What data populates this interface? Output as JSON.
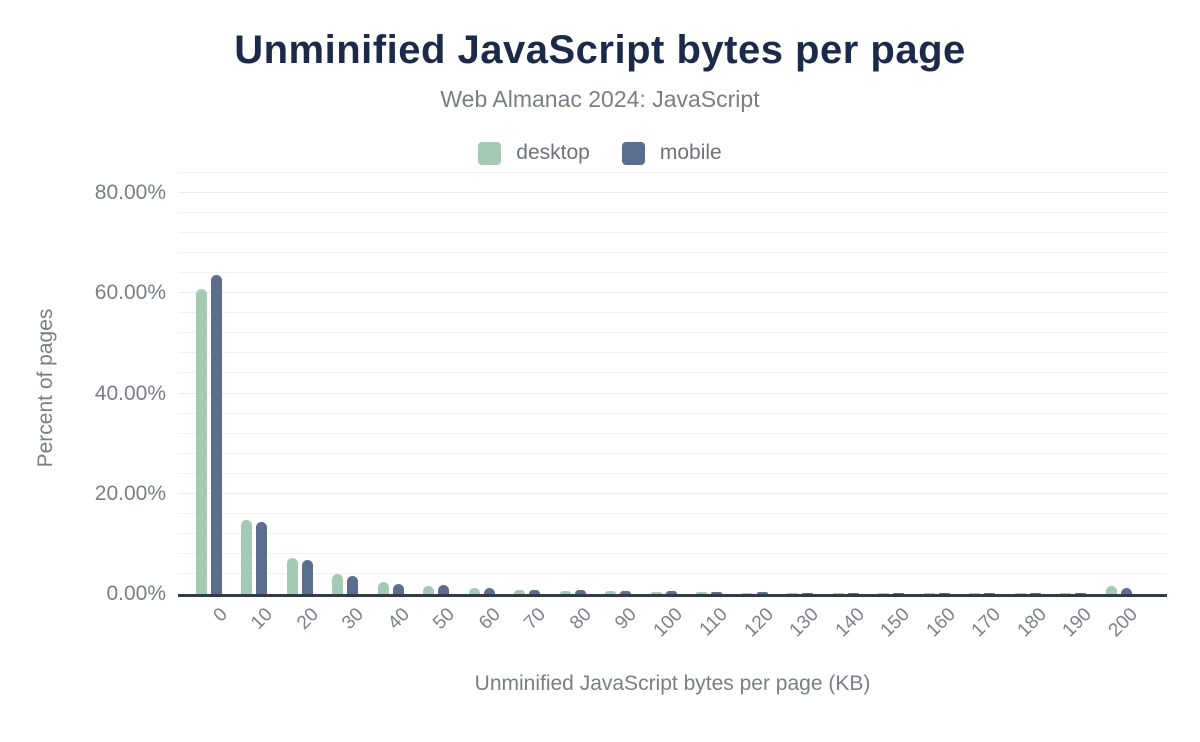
{
  "header": {
    "title": "Unminified JavaScript bytes per page",
    "subtitle": "Web Almanac 2024: JavaScript"
  },
  "legend": {
    "items": [
      {
        "label": "desktop",
        "color": "#a4c9b4"
      },
      {
        "label": "mobile",
        "color": "#5b6e8e"
      }
    ]
  },
  "axes": {
    "y_title": "Percent of pages",
    "x_title": "Unminified JavaScript bytes per page (KB)"
  },
  "colors": {
    "title_text": "#1c2a4a",
    "muted_text": "#797e86",
    "axis_line": "#333b46",
    "gridline": "#f2f2f2",
    "desktop": "#a4c9b4",
    "mobile": "#5b6e8e",
    "background": "#ffffff"
  },
  "chart_data": {
    "type": "bar",
    "title": "Unminified JavaScript bytes per page",
    "subtitle": "Web Almanac 2024: JavaScript",
    "xlabel": "Unminified JavaScript bytes per page (KB)",
    "ylabel": "Percent of pages",
    "categories": [
      "0",
      "10",
      "20",
      "30",
      "40",
      "50",
      "60",
      "70",
      "80",
      "90",
      "100",
      "110",
      "120",
      "130",
      "140",
      "150",
      "160",
      "170",
      "180",
      "190",
      "200"
    ],
    "series": [
      {
        "name": "desktop",
        "color": "#a4c9b4",
        "values": [
          60.9,
          14.8,
          7.2,
          3.9,
          2.3,
          1.6,
          1.2,
          0.9,
          0.7,
          0.6,
          0.5,
          0.35,
          0.3,
          0.25,
          0.2,
          0.2,
          0.2,
          0.15,
          0.1,
          0.1,
          1.6
        ]
      },
      {
        "name": "mobile",
        "color": "#5b6e8e",
        "values": [
          63.7,
          14.3,
          6.7,
          3.5,
          2.0,
          1.7,
          1.2,
          0.9,
          0.8,
          0.6,
          0.6,
          0.4,
          0.35,
          0.3,
          0.3,
          0.25,
          0.2,
          0.2,
          0.2,
          0.15,
          1.2
        ]
      }
    ],
    "ylim": [
      0,
      85
    ],
    "yticks": [
      0,
      20,
      40,
      60,
      80
    ],
    "ytick_format": "0.00%",
    "grid": {
      "minor_step": 4,
      "major_step": 20,
      "on": true
    },
    "legend_position": "top",
    "bar_corner": "rounded-top"
  }
}
